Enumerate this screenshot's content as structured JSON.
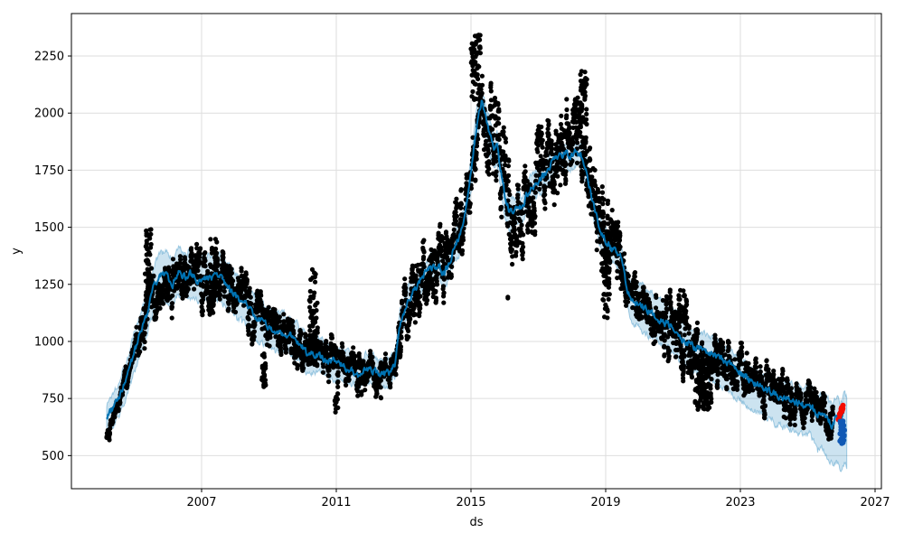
{
  "chart_data": {
    "type": "line",
    "title": "",
    "xlabel": "ds",
    "ylabel": "y",
    "x_ticks": [
      2007,
      2011,
      2015,
      2019,
      2023,
      2027
    ],
    "y_ticks": [
      500,
      750,
      1000,
      1250,
      1500,
      1750,
      2000,
      2250
    ],
    "x_range": [
      2003.134,
      2027.188
    ],
    "y_range": [
      355,
      2436
    ],
    "grid": true,
    "legend": "none",
    "colors": {
      "forecast_line": "#0072B2",
      "band_fill": "rgba(0,114,178,0.20)",
      "band_edge": "rgba(0,114,178,0.33)",
      "observed": "#000000",
      "anomaly": "#f40b00",
      "forecast_points": "#1059b5",
      "grid": "#dedede",
      "spine": "#000000"
    },
    "yhat": [
      [
        2004.18,
        660
      ],
      [
        2004.5,
        745
      ],
      [
        2004.75,
        835
      ],
      [
        2005.0,
        950
      ],
      [
        2005.2,
        1045
      ],
      [
        2005.4,
        1135
      ],
      [
        2005.6,
        1245
      ],
      [
        2005.8,
        1295
      ],
      [
        2006.0,
        1280
      ],
      [
        2006.15,
        1248
      ],
      [
        2006.3,
        1305
      ],
      [
        2006.5,
        1282
      ],
      [
        2006.7,
        1296
      ],
      [
        2006.9,
        1262
      ],
      [
        2007.1,
        1282
      ],
      [
        2007.3,
        1272
      ],
      [
        2007.5,
        1290
      ],
      [
        2007.7,
        1256
      ],
      [
        2007.9,
        1222
      ],
      [
        2008.1,
        1186
      ],
      [
        2008.35,
        1158
      ],
      [
        2008.6,
        1102
      ],
      [
        2008.9,
        1072
      ],
      [
        2009.2,
        1042
      ],
      [
        2009.5,
        1040
      ],
      [
        2009.8,
        1012
      ],
      [
        2010.1,
        952
      ],
      [
        2010.4,
        942
      ],
      [
        2010.7,
        922
      ],
      [
        2011.0,
        906
      ],
      [
        2011.25,
        888
      ],
      [
        2011.5,
        872
      ],
      [
        2011.65,
        852
      ],
      [
        2011.85,
        882
      ],
      [
        2012.1,
        872
      ],
      [
        2012.4,
        858
      ],
      [
        2012.6,
        862
      ],
      [
        2012.75,
        905
      ],
      [
        2012.9,
        1080
      ],
      [
        2013.1,
        1170
      ],
      [
        2013.3,
        1225
      ],
      [
        2013.5,
        1270
      ],
      [
        2013.7,
        1305
      ],
      [
        2013.9,
        1330
      ],
      [
        2014.05,
        1330
      ],
      [
        2014.2,
        1290
      ],
      [
        2014.35,
        1340
      ],
      [
        2014.5,
        1420
      ],
      [
        2014.65,
        1455
      ],
      [
        2014.8,
        1540
      ],
      [
        2014.95,
        1690
      ],
      [
        2015.05,
        1800
      ],
      [
        2015.15,
        1920
      ],
      [
        2015.25,
        2020
      ],
      [
        2015.32,
        2060
      ],
      [
        2015.4,
        2010
      ],
      [
        2015.5,
        1940
      ],
      [
        2015.6,
        1880
      ],
      [
        2015.7,
        1830
      ],
      [
        2015.78,
        1860
      ],
      [
        2015.85,
        1780
      ],
      [
        2015.95,
        1690
      ],
      [
        2016.05,
        1610
      ],
      [
        2016.15,
        1572
      ],
      [
        2016.3,
        1565
      ],
      [
        2016.4,
        1603
      ],
      [
        2016.5,
        1580
      ],
      [
        2016.65,
        1640
      ],
      [
        2016.8,
        1675
      ],
      [
        2017.0,
        1702
      ],
      [
        2017.2,
        1740
      ],
      [
        2017.4,
        1782
      ],
      [
        2017.6,
        1812
      ],
      [
        2017.8,
        1826
      ],
      [
        2017.95,
        1812
      ],
      [
        2018.1,
        1830
      ],
      [
        2018.25,
        1822
      ],
      [
        2018.4,
        1760
      ],
      [
        2018.55,
        1660
      ],
      [
        2018.7,
        1560
      ],
      [
        2018.85,
        1480
      ],
      [
        2019.0,
        1440
      ],
      [
        2019.15,
        1408
      ],
      [
        2019.3,
        1390
      ],
      [
        2019.45,
        1368
      ],
      [
        2019.55,
        1295
      ],
      [
        2019.65,
        1215
      ],
      [
        2019.8,
        1180
      ],
      [
        2019.95,
        1168
      ],
      [
        2020.15,
        1148
      ],
      [
        2020.35,
        1128
      ],
      [
        2020.6,
        1096
      ],
      [
        2020.9,
        1070
      ],
      [
        2021.15,
        1038
      ],
      [
        2021.35,
        998
      ],
      [
        2021.6,
        978
      ],
      [
        2021.85,
        962
      ],
      [
        2022.1,
        948
      ],
      [
        2022.35,
        930
      ],
      [
        2022.55,
        912
      ],
      [
        2022.8,
        884
      ],
      [
        2023.05,
        858
      ],
      [
        2023.3,
        830
      ],
      [
        2023.55,
        806
      ],
      [
        2023.85,
        784
      ],
      [
        2024.1,
        764
      ],
      [
        2024.35,
        750
      ],
      [
        2024.6,
        740
      ],
      [
        2024.85,
        722
      ],
      [
        2025.05,
        735
      ],
      [
        2025.2,
        690
      ],
      [
        2025.3,
        668
      ],
      [
        2025.45,
        690
      ],
      [
        2025.6,
        655
      ],
      [
        2025.72,
        630
      ],
      [
        2025.85,
        668
      ],
      [
        2025.95,
        648
      ],
      [
        2026.08,
        690
      ]
    ],
    "band": [
      [
        2004.2,
        80,
        62
      ],
      [
        2005.0,
        85,
        80
      ],
      [
        2006.0,
        100,
        102
      ],
      [
        2007.0,
        100,
        102
      ],
      [
        2008.0,
        95,
        95
      ],
      [
        2009.0,
        85,
        80
      ],
      [
        2010.0,
        78,
        72
      ],
      [
        2011.0,
        72,
        68
      ],
      [
        2012.0,
        62,
        58
      ],
      [
        2013.5,
        55,
        58
      ],
      [
        2014.3,
        62,
        62
      ],
      [
        2015.3,
        95,
        60
      ],
      [
        2015.9,
        88,
        65
      ],
      [
        2016.5,
        65,
        58
      ],
      [
        2017.5,
        56,
        52
      ],
      [
        2018.3,
        58,
        54
      ],
      [
        2018.9,
        60,
        56
      ],
      [
        2019.4,
        64,
        60
      ],
      [
        2020.1,
        112,
        88
      ],
      [
        2021.0,
        102,
        88
      ],
      [
        2022.0,
        108,
        75
      ],
      [
        2022.5,
        116,
        64
      ],
      [
        2023.5,
        122,
        64
      ],
      [
        2024.5,
        130,
        70
      ],
      [
        2025.2,
        142,
        82
      ],
      [
        2025.7,
        168,
        90
      ],
      [
        2026.0,
        210,
        82
      ],
      [
        2026.17,
        232,
        72
      ]
    ],
    "band_t_range": [
      2004.18,
      2026.17
    ],
    "observed_t_range": [
      2004.18,
      2025.75
    ],
    "scatter_sigma": [
      [
        2004.18,
        18
      ],
      [
        2005.0,
        30
      ],
      [
        2005.35,
        70
      ],
      [
        2005.7,
        70
      ],
      [
        2006.5,
        70
      ],
      [
        2007.5,
        72
      ],
      [
        2008.5,
        62
      ],
      [
        2009.5,
        55
      ],
      [
        2010.5,
        55
      ],
      [
        2011.5,
        48
      ],
      [
        2012.5,
        40
      ],
      [
        2013.2,
        95
      ],
      [
        2014.0,
        90
      ],
      [
        2014.8,
        82
      ],
      [
        2015.3,
        95
      ],
      [
        2015.9,
        148
      ],
      [
        2016.3,
        118
      ],
      [
        2017.0,
        105
      ],
      [
        2017.8,
        108
      ],
      [
        2018.3,
        112
      ],
      [
        2018.8,
        148
      ],
      [
        2019.3,
        92
      ],
      [
        2020.0,
        75
      ],
      [
        2020.8,
        70
      ],
      [
        2021.5,
        92
      ],
      [
        2022.0,
        88
      ],
      [
        2022.7,
        62
      ],
      [
        2023.5,
        58
      ],
      [
        2024.3,
        55
      ],
      [
        2025.0,
        48
      ],
      [
        2025.75,
        38
      ]
    ],
    "scatter_bias": [
      [
        2004.18,
        -85
      ],
      [
        2004.45,
        -40
      ],
      [
        2004.6,
        0
      ],
      [
        2015.7,
        0
      ],
      [
        2016.0,
        -55
      ],
      [
        2016.35,
        -40
      ],
      [
        2016.6,
        0
      ],
      [
        2021.5,
        0
      ],
      [
        2021.8,
        -70
      ],
      [
        2022.2,
        -55
      ],
      [
        2022.5,
        0
      ],
      [
        2025.75,
        0
      ]
    ],
    "outlier_clusters": [
      {
        "year": 2005.42,
        "span": 0.1,
        "vmin": 1180,
        "vmax": 1505,
        "count": 60
      },
      {
        "year": 2007.35,
        "span": 0.1,
        "vmin": 1200,
        "vmax": 1455,
        "count": 45
      },
      {
        "year": 2008.85,
        "span": 0.06,
        "vmin": 800,
        "vmax": 950,
        "count": 25
      },
      {
        "year": 2010.32,
        "span": 0.12,
        "vmin": 880,
        "vmax": 1330,
        "count": 70
      },
      {
        "year": 2011.0,
        "span": 0.05,
        "vmin": 685,
        "vmax": 800,
        "count": 15
      },
      {
        "year": 2012.25,
        "span": 0.08,
        "vmin": 750,
        "vmax": 850,
        "count": 20
      },
      {
        "year": 2015.15,
        "span": 0.15,
        "vmin": 2050,
        "vmax": 2345,
        "count": 55
      },
      {
        "year": 2016.1,
        "span": 0.01,
        "vmin": 1185,
        "vmax": 1195,
        "count": 2
      },
      {
        "year": 2018.35,
        "span": 0.1,
        "vmin": 1950,
        "vmax": 2185,
        "count": 45
      },
      {
        "year": 2019.0,
        "span": 0.1,
        "vmin": 1100,
        "vmax": 1420,
        "count": 40
      },
      {
        "year": 2021.25,
        "span": 0.12,
        "vmin": 1080,
        "vmax": 1230,
        "count": 30
      },
      {
        "year": 2021.9,
        "span": 0.25,
        "vmin": 700,
        "vmax": 980,
        "count": 70
      }
    ],
    "anomaly_cluster": {
      "t0": 2025.9,
      "t1": 2026.08,
      "vmin": 645,
      "vmax": 740,
      "count": 24
    },
    "forecast_cluster": {
      "t0": 2025.96,
      "t1": 2026.1,
      "vmin": 553,
      "vmax": 655,
      "count": 26
    },
    "render_hints": {
      "seed": 1337,
      "dot_radius": 2.6,
      "special_dot_radius": 3.0,
      "line_width": 2,
      "line_wiggle": 26,
      "band_wiggle": 30,
      "walk_phi": 0.88,
      "walk_innov": 0.45
    }
  }
}
